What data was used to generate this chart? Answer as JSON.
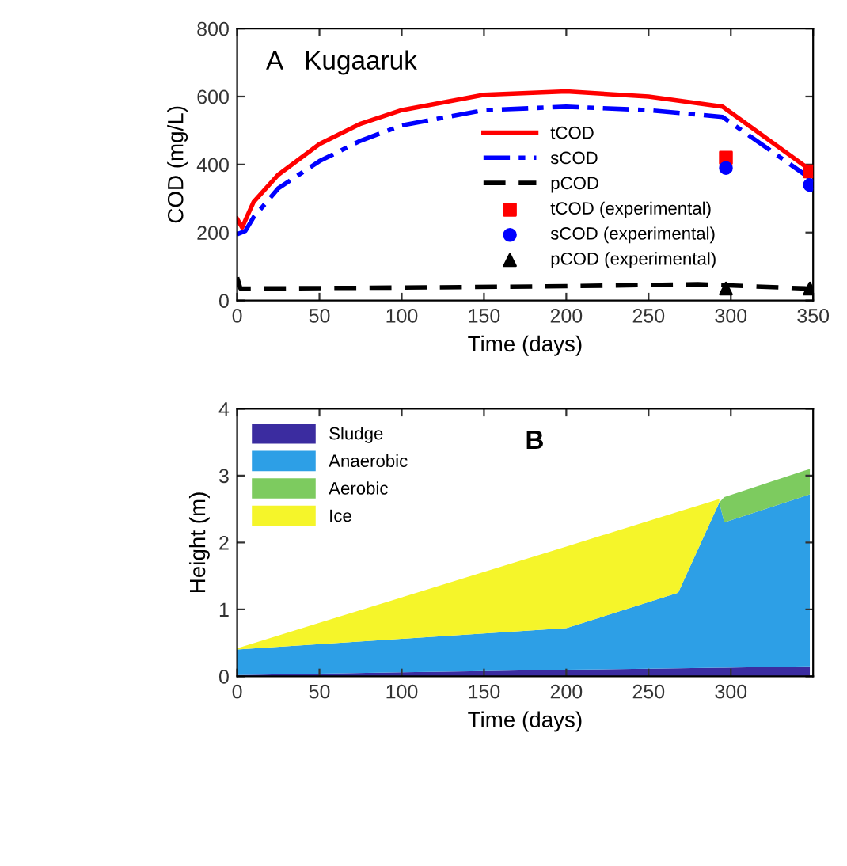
{
  "chart_data": [
    {
      "type": "line",
      "xlabel": "Time (days)",
      "ylabel": "COD (mg/L)",
      "annotations": [
        "A   Kugaaruk"
      ],
      "xlim": [
        0,
        350
      ],
      "ylim": [
        0,
        800
      ],
      "xticks": [
        0,
        50,
        100,
        150,
        200,
        250,
        300,
        350
      ],
      "yticks": [
        0,
        200,
        400,
        600,
        800
      ],
      "grid": false,
      "legend": "center",
      "series": [
        {
          "name": "tCOD",
          "type": "line",
          "color": "#ff0000",
          "line_style": "solid",
          "marker": "none",
          "x": [
            0,
            3,
            10,
            25,
            50,
            75,
            100,
            150,
            200,
            250,
            295,
            348
          ],
          "values": [
            240,
            215,
            290,
            370,
            460,
            520,
            560,
            605,
            615,
            600,
            570,
            385
          ]
        },
        {
          "name": "sCOD",
          "type": "line",
          "color": "#0000ff",
          "line_style": "dashdot",
          "marker": "none",
          "x": [
            0,
            5,
            10,
            25,
            50,
            75,
            100,
            150,
            200,
            250,
            295,
            348
          ],
          "values": [
            195,
            205,
            245,
            330,
            410,
            470,
            515,
            560,
            570,
            560,
            540,
            360
          ]
        },
        {
          "name": "pCOD",
          "type": "line",
          "color": "#000000",
          "line_style": "dashed",
          "marker": "none",
          "x": [
            0,
            2,
            100,
            200,
            280,
            295,
            348
          ],
          "values": [
            68,
            35,
            38,
            42,
            48,
            45,
            35
          ]
        },
        {
          "name": "tCOD (experimental)",
          "type": "scatter",
          "color": "#ff0000",
          "marker": "square",
          "x": [
            297,
            348
          ],
          "values": [
            420,
            380
          ]
        },
        {
          "name": "sCOD (experimental)",
          "type": "scatter",
          "color": "#0000ff",
          "marker": "circle",
          "x": [
            297,
            348
          ],
          "values": [
            390,
            340
          ]
        },
        {
          "name": "pCOD (experimental)",
          "type": "scatter",
          "color": "#000000",
          "marker": "triangle",
          "x": [
            297,
            348
          ],
          "values": [
            35,
            35
          ]
        }
      ]
    },
    {
      "type": "area",
      "stacked": true,
      "xlabel": "Time (days)",
      "ylabel": "Height (m)",
      "annotations": [
        "B"
      ],
      "xlim": [
        0,
        350
      ],
      "ylim": [
        0,
        4
      ],
      "xticks": [
        0,
        50,
        100,
        150,
        200,
        250,
        300
      ],
      "yticks": [
        0,
        1,
        2,
        3,
        4
      ],
      "grid": false,
      "legend": "top left",
      "x": [
        0,
        50,
        100,
        150,
        200,
        268,
        293,
        296,
        348
      ],
      "series": [
        {
          "name": "Sludge",
          "color": "#3b2ca0",
          "values": [
            0.02,
            0.04,
            0.06,
            0.08,
            0.1,
            0.12,
            0.13,
            0.13,
            0.15
          ]
        },
        {
          "name": "Anaerobic",
          "color": "#2d9fe6",
          "values": [
            0.38,
            0.44,
            0.5,
            0.56,
            0.62,
            1.13,
            2.47,
            2.17,
            2.57
          ]
        },
        {
          "name": "Aerobic",
          "color": "#7dcb5f",
          "values": [
            null,
            null,
            null,
            null,
            null,
            null,
            0,
            0.38,
            0.38
          ]
        },
        {
          "name": "Ice",
          "color": "#f5f52a",
          "values": [
            0.02,
            0.32,
            0.62,
            0.92,
            1.22,
            1.21,
            0.05,
            null,
            null
          ]
        }
      ]
    }
  ]
}
